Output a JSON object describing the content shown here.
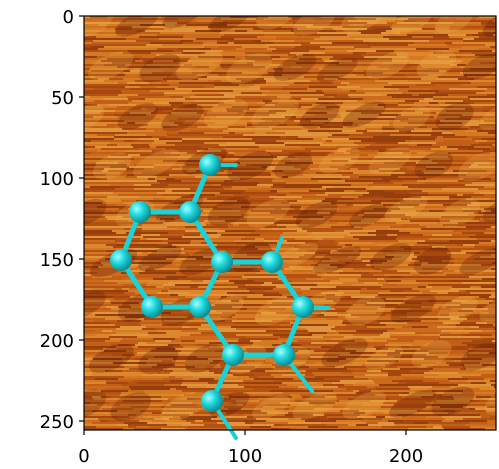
{
  "image": {
    "description_colormap": "afmhot",
    "axes": {
      "x_ticks": [
        "0",
        "100",
        "200"
      ],
      "y_ticks": [
        "0",
        "50",
        "100",
        "150",
        "200",
        "250"
      ],
      "x_range": [
        0,
        256
      ],
      "y_range": [
        0,
        256
      ]
    },
    "overlay_color": "#19d3d9"
  }
}
